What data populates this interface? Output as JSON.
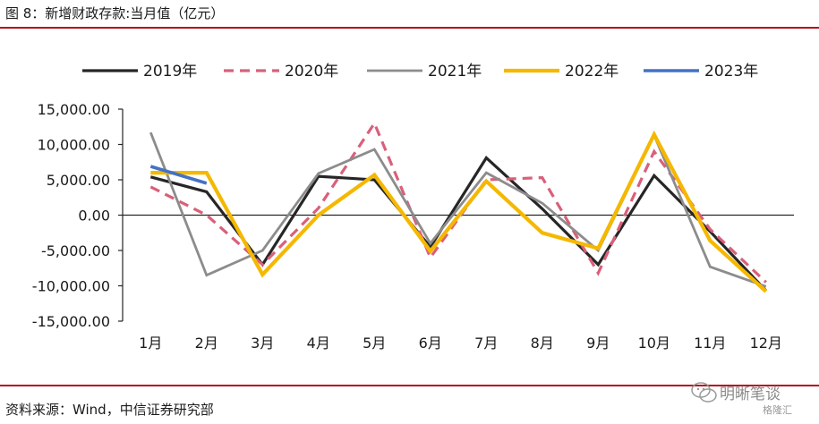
{
  "header": {
    "title": "图 8：新增财政存款:当月值（亿元）"
  },
  "footer": {
    "source": "资料来源：Wind，中信证券研究部",
    "watermark": "明晰笔谈",
    "watermark_sub": "格隆汇"
  },
  "chart_data": {
    "type": "line",
    "title": "新增财政存款:当月值（亿元）",
    "xlabel": "",
    "ylabel": "",
    "categories": [
      "1月",
      "2月",
      "3月",
      "4月",
      "5月",
      "6月",
      "7月",
      "8月",
      "9月",
      "10月",
      "11月",
      "12月"
    ],
    "ylim": [
      -15000,
      15000
    ],
    "yticks": [
      15000,
      10000,
      5000,
      0,
      -5000,
      -10000,
      -15000
    ],
    "ytick_labels": [
      "15,000.00",
      "10,000.00",
      "5,000.00",
      "0.00",
      "-5,000.00",
      "-10,000.00",
      "-15,000.00"
    ],
    "grid": false,
    "legend_position": "top",
    "series": [
      {
        "name": "2019年",
        "color": "#262626",
        "dash": "solid",
        "values": [
          5400,
          3300,
          -7000,
          5500,
          5000,
          -4500,
          8100,
          900,
          -7000,
          5600,
          -2300,
          -10700
        ]
      },
      {
        "name": "2020年",
        "color": "#d9607a",
        "dash": "dashed",
        "values": [
          4000,
          0,
          -7000,
          1000,
          13000,
          -6000,
          5000,
          5300,
          -8200,
          9000,
          -2000,
          -9500
        ]
      },
      {
        "name": "2021年",
        "color": "#8c8c8c",
        "dash": "solid",
        "values": [
          11700,
          -8500,
          -5000,
          5900,
          9300,
          -4000,
          6000,
          1700,
          -5000,
          11300,
          -7300,
          -10100
        ]
      },
      {
        "name": "2022年",
        "color": "#f5b800",
        "dash": "solid",
        "values": [
          6000,
          6000,
          -8400,
          0,
          5700,
          -5100,
          4800,
          -2500,
          -4700,
          11400,
          -3600,
          -10800
        ]
      },
      {
        "name": "2023年",
        "color": "#4472c4",
        "dash": "solid",
        "values": [
          6900,
          4500,
          null,
          null,
          null,
          null,
          null,
          null,
          null,
          null,
          null,
          null
        ]
      }
    ]
  }
}
